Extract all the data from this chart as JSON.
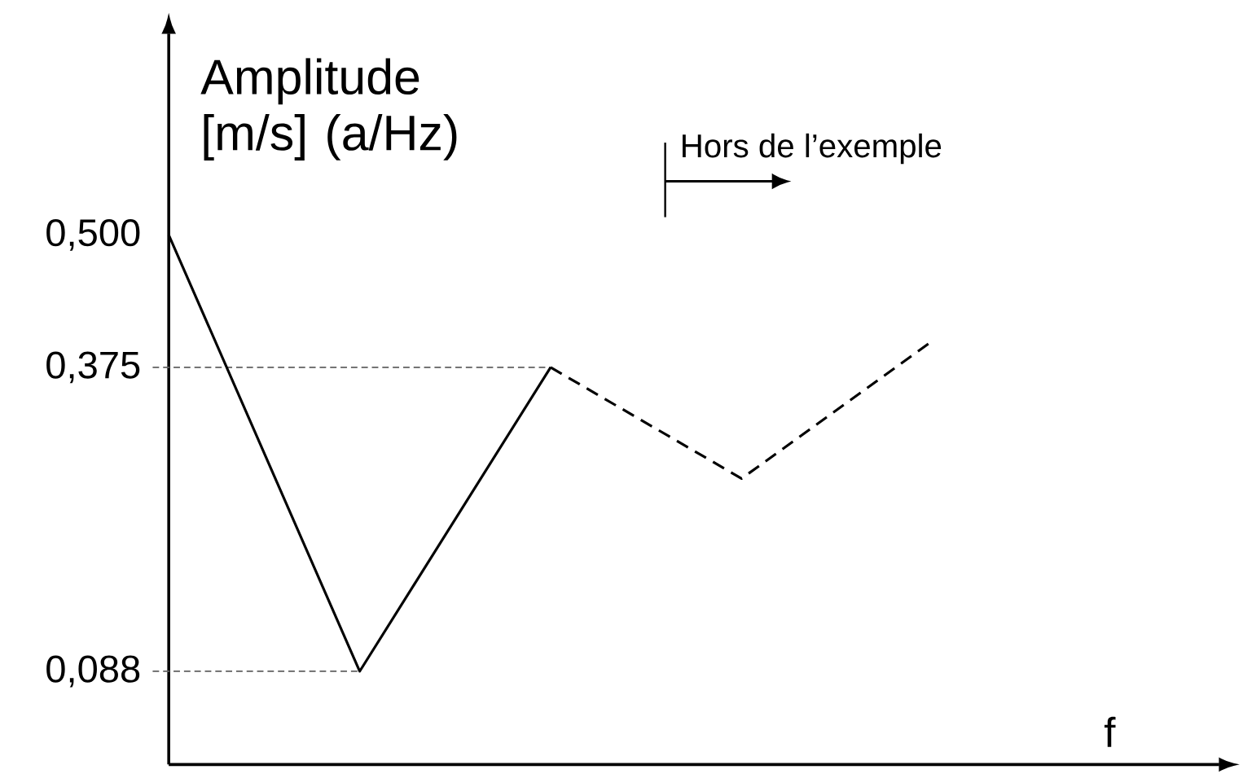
{
  "chart_data": {
    "type": "line",
    "ylabel": "Amplitude [m/s] (a/Hz)",
    "xlabel": "f",
    "annotations": [
      "Hors de l’exemple"
    ],
    "categories": [
      null,
      null,
      null,
      null,
      null
    ],
    "series": [
      {
        "color": "#000000",
        "line_style": "solid",
        "values": [
          0.5,
          0.088,
          0.375,
          null,
          null
        ]
      },
      {
        "color": "#000000",
        "line_style": "dashed",
        "values": [
          null,
          null,
          0.375,
          0.27,
          0.4
        ]
      }
    ],
    "ylim": [
      0,
      0.69
    ],
    "yticks": [
      {
        "value": 0.5,
        "label": "0,500"
      },
      {
        "value": 0.375,
        "label": "0,375"
      },
      {
        "value": 0.088,
        "label": "0,088"
      }
    ],
    "ref_lines": [
      {
        "axis": "y",
        "value": 0.375,
        "color": "#606060",
        "line_style": "dashed"
      },
      {
        "axis": "y",
        "value": 0.088,
        "color": "#606060",
        "line_style": "dashed"
      }
    ],
    "marker": "none"
  }
}
